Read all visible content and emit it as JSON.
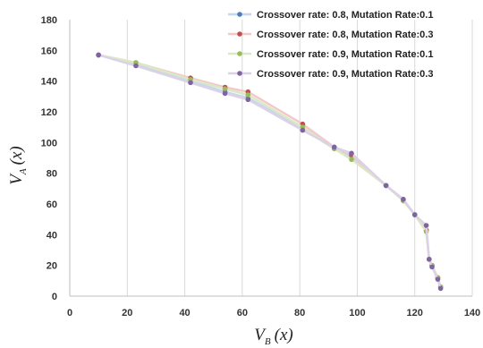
{
  "chart_data": {
    "type": "line",
    "title": "",
    "xlabel": {
      "main": "V",
      "sub": "B",
      "arg": "(x)"
    },
    "ylabel": {
      "main": "V",
      "sub": "A",
      "arg": "(x)"
    },
    "xlim": [
      0,
      140
    ],
    "ylim": [
      0,
      180
    ],
    "xticks": [
      0,
      20,
      40,
      60,
      80,
      100,
      120,
      140
    ],
    "yticks": [
      0,
      20,
      40,
      60,
      80,
      100,
      120,
      140,
      160,
      180
    ],
    "grid": {
      "vertical": true,
      "horizontal": false
    },
    "legend_position": "top-right",
    "series": [
      {
        "name": "Crossover rate: 0.8, Mutation Rate:0.1",
        "color": "#4a7ebb",
        "line_color": "#c5d6ee",
        "x": [
          10,
          23,
          42,
          54,
          62,
          81,
          92,
          98,
          110,
          116,
          120,
          124,
          125,
          126,
          128,
          129
        ],
        "y": [
          157,
          151,
          140,
          133,
          129,
          109,
          96,
          91,
          72,
          63,
          53,
          43,
          24,
          20,
          12,
          6
        ]
      },
      {
        "name": "Crossover rate: 0.8, Mutation Rate:0.3",
        "color": "#c0504d",
        "line_color": "#f2c9c8",
        "x": [
          10,
          23,
          42,
          54,
          62,
          81,
          92,
          98,
          110,
          116,
          120,
          124,
          125,
          126,
          128,
          129
        ],
        "y": [
          157,
          152,
          142,
          136,
          133,
          112,
          97,
          92,
          72,
          63,
          53,
          43,
          24,
          20,
          12,
          6
        ]
      },
      {
        "name": "Crossover rate: 0.9, Mutation Rate:0.1",
        "color": "#9bbb59",
        "line_color": "#dbe8c4",
        "x": [
          10,
          23,
          42,
          54,
          62,
          81,
          92,
          98,
          110,
          116,
          120,
          124,
          125,
          126,
          128,
          129
        ],
        "y": [
          157,
          152,
          141,
          135,
          131,
          110,
          96,
          89,
          72,
          62,
          53,
          42,
          24,
          20,
          12,
          6
        ]
      },
      {
        "name": "Crossover rate: 0.9, Mutation Rate:0.3",
        "color": "#8064a2",
        "line_color": "#dcd2e8",
        "x": [
          10,
          23,
          42,
          54,
          62,
          81,
          92,
          98,
          110,
          116,
          120,
          124,
          125,
          126,
          128,
          129
        ],
        "y": [
          157,
          150,
          139,
          132,
          128,
          108,
          97,
          93,
          72,
          63,
          53,
          46,
          24,
          19,
          11,
          5
        ]
      }
    ]
  }
}
